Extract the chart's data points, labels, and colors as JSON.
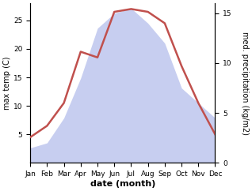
{
  "months": [
    "Jan",
    "Feb",
    "Mar",
    "Apr",
    "May",
    "Jun",
    "Jul",
    "Aug",
    "Sep",
    "Oct",
    "Nov",
    "Dec"
  ],
  "temp": [
    4.5,
    6.5,
    10.5,
    19.5,
    18.5,
    26.5,
    27.0,
    26.5,
    24.5,
    17.0,
    10.5,
    5.0
  ],
  "precip": [
    1.5,
    2.0,
    4.5,
    8.5,
    13.5,
    15.0,
    15.5,
    14.0,
    12.0,
    7.5,
    6.0,
    4.5
  ],
  "temp_color": "#c0504d",
  "fill_color": "#aab4e8",
  "fill_alpha": 0.65,
  "ylabel_left": "max temp (C)",
  "ylabel_right": "med. precipitation (kg/m2)",
  "xlabel": "date (month)",
  "ylim_left": [
    0,
    28
  ],
  "ylim_right": [
    0,
    16
  ],
  "yticks_left": [
    5,
    10,
    15,
    20,
    25
  ],
  "yticks_right": [
    0,
    5,
    10,
    15
  ],
  "background_color": "#ffffff",
  "line_width": 1.8,
  "title_fontsize": 7,
  "label_fontsize": 7,
  "tick_fontsize": 6.5
}
